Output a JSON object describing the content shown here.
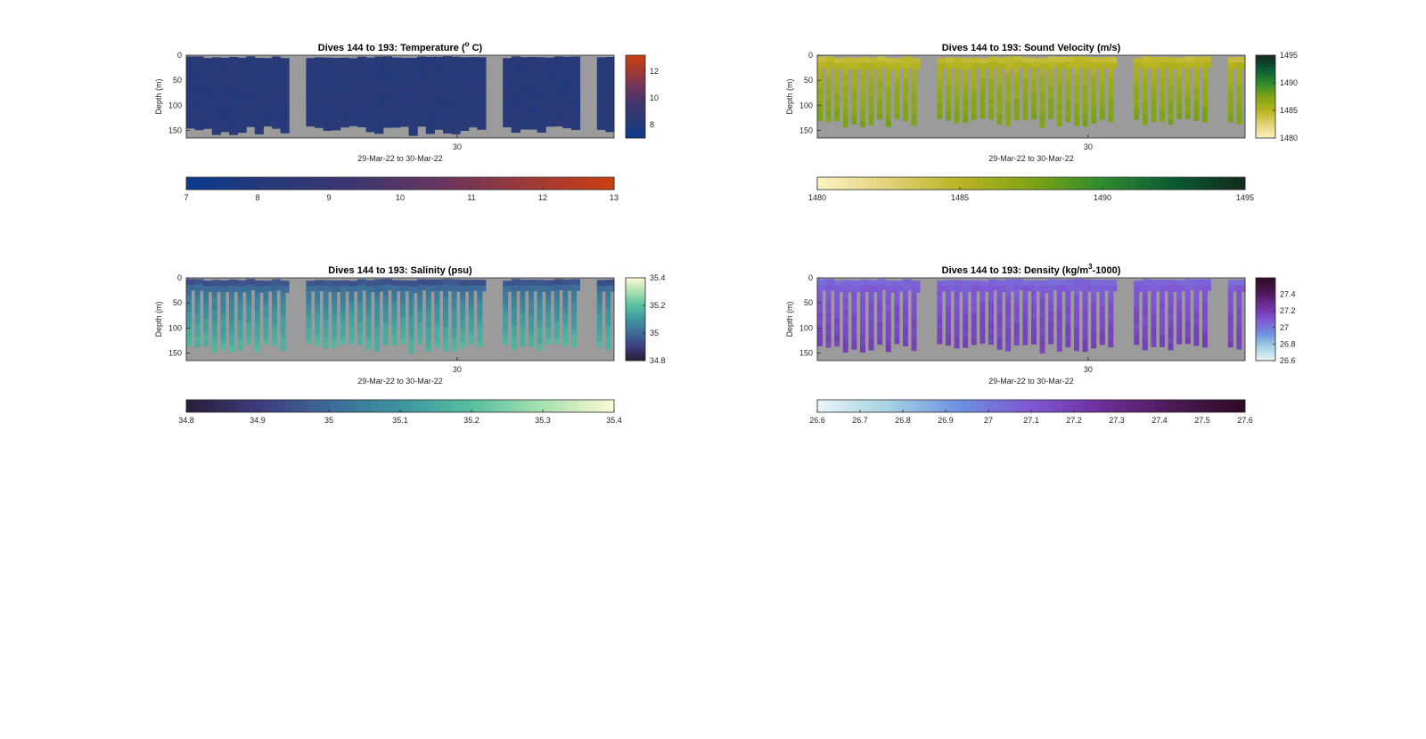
{
  "chart_data": [
    {
      "type": "heatmap",
      "id": "temperature",
      "title": "Dives 144 to 193: Temperature (",
      "title_sup": "o",
      "title_suffix": " C)",
      "ylabel": "Depth (m)",
      "xlabel": "29-Mar-22 to 30-Mar-22",
      "x_tick_labels": [
        "30"
      ],
      "y_ticks": [
        0,
        50,
        100,
        150
      ],
      "ylim": [
        0,
        165
      ],
      "side_colorbar_ticks": [
        8,
        10,
        12
      ],
      "side_colorbar_range": [
        7,
        13.2
      ],
      "bottom_colorbar_ticks": [
        7,
        8,
        9,
        10,
        11,
        12,
        13
      ],
      "bottom_colorbar_range": [
        7,
        13
      ],
      "colormap": [
        "#0b3a8e",
        "#273a7a",
        "#3f3671",
        "#6a3560",
        "#9e3a36",
        "#cc3f12"
      ],
      "missing_color": "#9b9b9b",
      "field_value": 8.3,
      "dive_count": 50,
      "max_depth_m": 160
    },
    {
      "type": "heatmap",
      "id": "sound-velocity",
      "title": "Dives 144 to 193: Sound Velocity (m/s)",
      "ylabel": "Depth (m)",
      "xlabel": "29-Mar-22 to 30-Mar-22",
      "x_tick_labels": [
        "30"
      ],
      "y_ticks": [
        0,
        50,
        100,
        150
      ],
      "ylim": [
        0,
        165
      ],
      "side_colorbar_ticks": [
        1480,
        1485,
        1490,
        1495
      ],
      "side_colorbar_range": [
        1480,
        1495
      ],
      "bottom_colorbar_ticks": [
        1480,
        1485,
        1490,
        1495
      ],
      "bottom_colorbar_range": [
        1480,
        1495
      ],
      "colormap": [
        "#fbf3c2",
        "#e3d278",
        "#b9b422",
        "#7fa414",
        "#2f8a2e",
        "#0a5a32",
        "#142a1c"
      ],
      "missing_color": "#9b9b9b",
      "surface_value": 1484.5,
      "deep_value": 1487.5,
      "dive_count": 50,
      "max_depth_m": 145
    },
    {
      "type": "heatmap",
      "id": "salinity",
      "title": "Dives 144 to 193: Salinity (psu)",
      "ylabel": "Depth (m)",
      "xlabel": "29-Mar-22 to 30-Mar-22",
      "x_tick_labels": [
        "30"
      ],
      "y_ticks": [
        0,
        50,
        100,
        150
      ],
      "ylim": [
        0,
        165
      ],
      "side_colorbar_ticks": [
        34.8,
        35,
        35.2,
        35.4
      ],
      "side_colorbar_range": [
        34.8,
        35.4
      ],
      "bottom_colorbar_ticks": [
        34.8,
        34.9,
        35,
        35.1,
        35.2,
        35.3,
        35.4
      ],
      "bottom_colorbar_range": [
        34.8,
        35.4
      ],
      "colormap": [
        "#2a1d36",
        "#3c3b7e",
        "#3d6a98",
        "#3e94a0",
        "#57bfa0",
        "#a8e0b0",
        "#fbfad6"
      ],
      "missing_color": "#9b9b9b",
      "surface_value": 34.95,
      "deep_value": 35.17,
      "dive_count": 50,
      "max_depth_m": 150
    },
    {
      "type": "heatmap",
      "id": "density",
      "title": "Dives 144 to 193: Density (kg/m",
      "title_sup": "3",
      "title_suffix": "-1000)",
      "ylabel": "Depth (m)",
      "xlabel": "29-Mar-22 to 30-Mar-22",
      "x_tick_labels": [
        "30"
      ],
      "y_ticks": [
        0,
        50,
        100,
        150
      ],
      "ylim": [
        0,
        165
      ],
      "side_colorbar_ticks": [
        26.6,
        26.8,
        27,
        27.2,
        27.4
      ],
      "side_colorbar_range": [
        26.6,
        27.6
      ],
      "bottom_colorbar_ticks": [
        26.6,
        26.7,
        26.8,
        26.9,
        27,
        27.1,
        27.2,
        27.3,
        27.4,
        27.5,
        27.6
      ],
      "bottom_colorbar_range": [
        26.6,
        27.6
      ],
      "colormap": [
        "#e9f5f7",
        "#a5d2e3",
        "#6d8fe0",
        "#8056d4",
        "#6e2e9a",
        "#4c1855",
        "#2e0b24"
      ],
      "missing_color": "#9b9b9b",
      "surface_value": 27.05,
      "deep_value": 27.18,
      "dive_count": 50,
      "max_depth_m": 150
    }
  ]
}
